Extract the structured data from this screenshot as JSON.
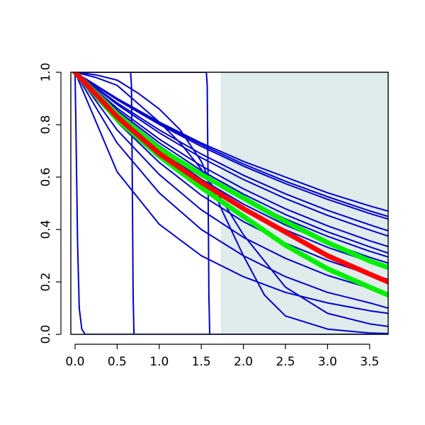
{
  "chart_data": {
    "type": "line",
    "title": "",
    "xlabel": "",
    "ylabel": "",
    "xlim": [
      -0.05,
      3.72
    ],
    "ylim": [
      0.0,
      1.0
    ],
    "x_ticks": [
      0.0,
      0.5,
      1.0,
      1.5,
      2.0,
      2.5,
      3.0,
      3.5
    ],
    "x_tick_labels": [
      "0.0",
      "0.5",
      "1.0",
      "1.5",
      "2.0",
      "2.5",
      "3.0",
      "3.5"
    ],
    "y_ticks": [
      0.0,
      0.2,
      0.4,
      0.6,
      0.8,
      1.0
    ],
    "y_tick_labels": [
      "0.0",
      "0.2",
      "0.4",
      "0.6",
      "0.8",
      "1.0"
    ],
    "grid": false,
    "shaded_region": {
      "x_from": 1.73,
      "x_to": 3.72,
      "color": "#e0ecec"
    },
    "colors": {
      "blue": "#0000cc",
      "red": "#ff0000",
      "green": "#00ee00",
      "shade": "#e0ecec"
    },
    "series": [
      {
        "color": "#0000cc",
        "x": [
          0,
          0.5,
          1,
          1.5,
          2,
          2.5,
          3,
          3.5,
          3.72
        ],
        "y": [
          1.0,
          0.9,
          0.81,
          0.73,
          0.66,
          0.6,
          0.54,
          0.49,
          0.47
        ]
      },
      {
        "color": "#0000cc",
        "x": [
          0,
          0.5,
          1,
          1.5,
          2,
          2.5,
          3,
          3.5,
          3.72
        ],
        "y": [
          1.0,
          0.898,
          0.806,
          0.724,
          0.65,
          0.584,
          0.525,
          0.471,
          0.45
        ]
      },
      {
        "color": "#0000cc",
        "x": [
          0,
          0.5,
          1,
          1.5,
          2,
          2.5,
          3,
          3.5,
          3.72
        ],
        "y": [
          1.0,
          0.895,
          0.801,
          0.717,
          0.642,
          0.575,
          0.515,
          0.461,
          0.44
        ]
      },
      {
        "color": "#0000cc",
        "x": [
          0,
          0.5,
          1,
          1.5,
          2,
          2.5,
          3,
          3.5,
          3.72
        ],
        "y": [
          1.0,
          0.883,
          0.78,
          0.688,
          0.607,
          0.536,
          0.473,
          0.418,
          0.395
        ]
      },
      {
        "color": "#0000cc",
        "x": [
          0,
          0.5,
          1,
          1.5,
          2,
          2.5,
          3,
          3.5,
          3.72
        ],
        "y": [
          1.0,
          0.877,
          0.769,
          0.674,
          0.591,
          0.518,
          0.454,
          0.398,
          0.375
        ]
      },
      {
        "color": "#0000cc",
        "x": [
          0,
          0.5,
          1,
          1.5,
          2,
          2.5,
          3,
          3.5,
          3.72
        ],
        "y": [
          1.0,
          0.863,
          0.745,
          0.643,
          0.555,
          0.479,
          0.414,
          0.357,
          0.335
        ]
      },
      {
        "color": "#0000cc",
        "x": [
          0,
          0.5,
          1,
          1.5,
          2,
          2.5,
          3,
          3.5,
          3.72
        ],
        "y": [
          1.0,
          0.855,
          0.731,
          0.625,
          0.535,
          0.457,
          0.391,
          0.334,
          0.31
        ]
      },
      {
        "color": "#0000cc",
        "x": [
          0,
          0.5,
          1,
          1.5,
          2,
          2.5,
          3,
          3.5,
          3.72
        ],
        "y": [
          1.0,
          0.849,
          0.72,
          0.611,
          0.519,
          0.44,
          0.374,
          0.317,
          0.295
        ]
      },
      {
        "color": "#0000cc",
        "x": [
          0,
          0.5,
          1,
          1.5,
          2,
          2.5,
          3,
          3.5,
          3.72
        ],
        "y": [
          1.0,
          0.84,
          0.705,
          0.592,
          0.497,
          0.417,
          0.35,
          0.294,
          0.272
        ]
      },
      {
        "color": "#0000cc",
        "x": [
          0,
          0.5,
          1,
          1.5,
          2,
          2.5,
          3,
          3.5,
          3.72
        ],
        "y": [
          1.0,
          0.832,
          0.693,
          0.577,
          0.48,
          0.399,
          0.332,
          0.277,
          0.255
        ]
      },
      {
        "color": "#0000cc",
        "x": [
          0,
          0.5,
          1,
          1.5,
          2,
          2.5,
          3,
          3.5,
          3.72
        ],
        "y": [
          1.0,
          0.81,
          0.656,
          0.531,
          0.43,
          0.348,
          0.282,
          0.228,
          0.21
        ]
      },
      {
        "color": "#0000cc",
        "x": [
          0,
          0.5,
          1,
          1.5,
          2,
          2.5,
          3,
          3.5,
          3.72
        ],
        "y": [
          1.0,
          0.78,
          0.61,
          0.475,
          0.37,
          0.29,
          0.225,
          0.176,
          0.158
        ]
      },
      {
        "color": "#0000cc",
        "x": [
          0,
          0.5,
          1,
          1.5,
          2,
          2.5,
          3,
          3.5,
          3.72
        ],
        "y": [
          1.0,
          0.73,
          0.54,
          0.4,
          0.3,
          0.22,
          0.16,
          0.12,
          0.1
        ]
      },
      {
        "color": "#0000cc",
        "x": [
          0,
          0.5,
          1,
          1.5,
          2,
          2.5,
          3,
          3.5,
          3.72
        ],
        "y": [
          1.0,
          0.62,
          0.42,
          0.3,
          0.22,
          0.16,
          0.12,
          0.09,
          0.08
        ]
      },
      {
        "color": "#0000cc",
        "x": [
          0,
          0.25,
          0.5,
          0.75,
          1,
          1.25,
          1.5,
          1.75,
          2,
          2.5,
          3,
          3.5,
          3.72
        ],
        "y": [
          1.0,
          0.98,
          0.95,
          0.88,
          0.81,
          0.73,
          0.63,
          0.51,
          0.38,
          0.18,
          0.08,
          0.04,
          0.03
        ]
      },
      {
        "color": "#0000cc",
        "x": [
          0,
          0.25,
          0.5,
          0.75,
          1,
          1.25,
          1.5,
          1.75,
          2,
          2.25,
          2.5,
          3,
          3.5,
          3.72
        ],
        "y": [
          1.0,
          0.99,
          0.97,
          0.92,
          0.86,
          0.78,
          0.66,
          0.47,
          0.3,
          0.15,
          0.07,
          0.02,
          0.005,
          0.003
        ]
      },
      {
        "color": "#0000cc",
        "x": [
          0,
          0.01,
          0.03,
          0.05,
          0.08,
          0.12,
          3.72
        ],
        "y": [
          1.0,
          0.8,
          0.35,
          0.1,
          0.02,
          0.0,
          0.0
        ]
      },
      {
        "color": "#0000cc",
        "x": [
          0,
          0.66,
          0.67,
          0.68,
          0.69,
          0.7,
          3.72
        ],
        "y": [
          1.0,
          1.0,
          0.95,
          0.6,
          0.15,
          0.0,
          0.0
        ]
      },
      {
        "color": "#0000cc",
        "x": [
          0,
          1.56,
          1.57,
          1.58,
          1.59,
          1.6,
          3.72
        ],
        "y": [
          1.0,
          1.0,
          0.95,
          0.6,
          0.15,
          0.0,
          0.0
        ]
      },
      {
        "color": "#00ee00",
        "x": [
          0,
          0.5,
          1,
          1.5,
          2,
          2.5,
          3,
          3.5,
          3.72
        ],
        "y": [
          1.0,
          0.84,
          0.71,
          0.61,
          0.52,
          0.43,
          0.35,
          0.28,
          0.255
        ]
      },
      {
        "color": "#00ee00",
        "x": [
          0,
          0.5,
          1,
          1.5,
          2,
          2.5,
          3,
          3.5,
          3.72
        ],
        "y": [
          1.0,
          0.82,
          0.68,
          0.56,
          0.45,
          0.34,
          0.25,
          0.18,
          0.15
        ]
      },
      {
        "color": "#ff0000",
        "x": [
          0,
          0.5,
          1,
          1.5,
          2,
          2.5,
          3,
          3.5,
          3.72
        ],
        "y": [
          1.0,
          0.83,
          0.69,
          0.58,
          0.48,
          0.39,
          0.3,
          0.23,
          0.2
        ]
      }
    ]
  }
}
